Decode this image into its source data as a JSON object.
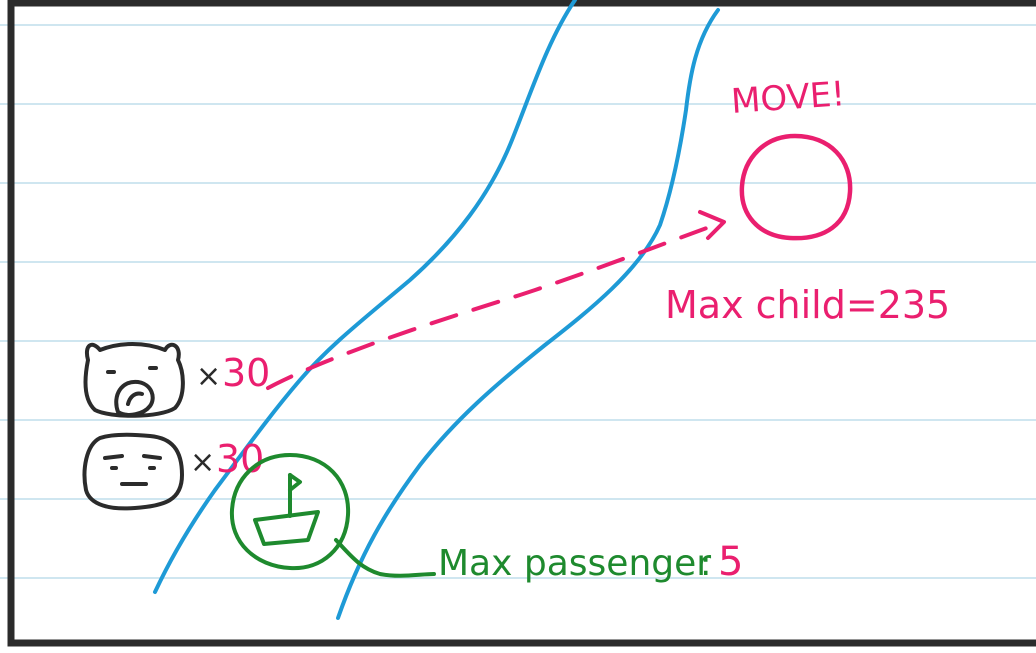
{
  "colors": {
    "paper": "#ffffff",
    "rule_lines": "#cfe6f0",
    "border": "#2b2b2b",
    "river": "#1e9ad6",
    "pink": "#ea1f6f",
    "green": "#1e8a2e",
    "ink": "#2b2b2b"
  },
  "labels": {
    "move": "MOVE!",
    "max_child": "Max child=235",
    "pig_count": "30",
    "face_count": "30",
    "times_sign": "×",
    "max_passenger_label": "Max passenger",
    "max_passenger_sep": ":",
    "max_passenger_value": "5"
  },
  "icons": {
    "pig": "pig-face-icon",
    "face": "child-face-icon",
    "boat": "boat-with-flag-icon",
    "destination": "destination-circle-icon"
  }
}
